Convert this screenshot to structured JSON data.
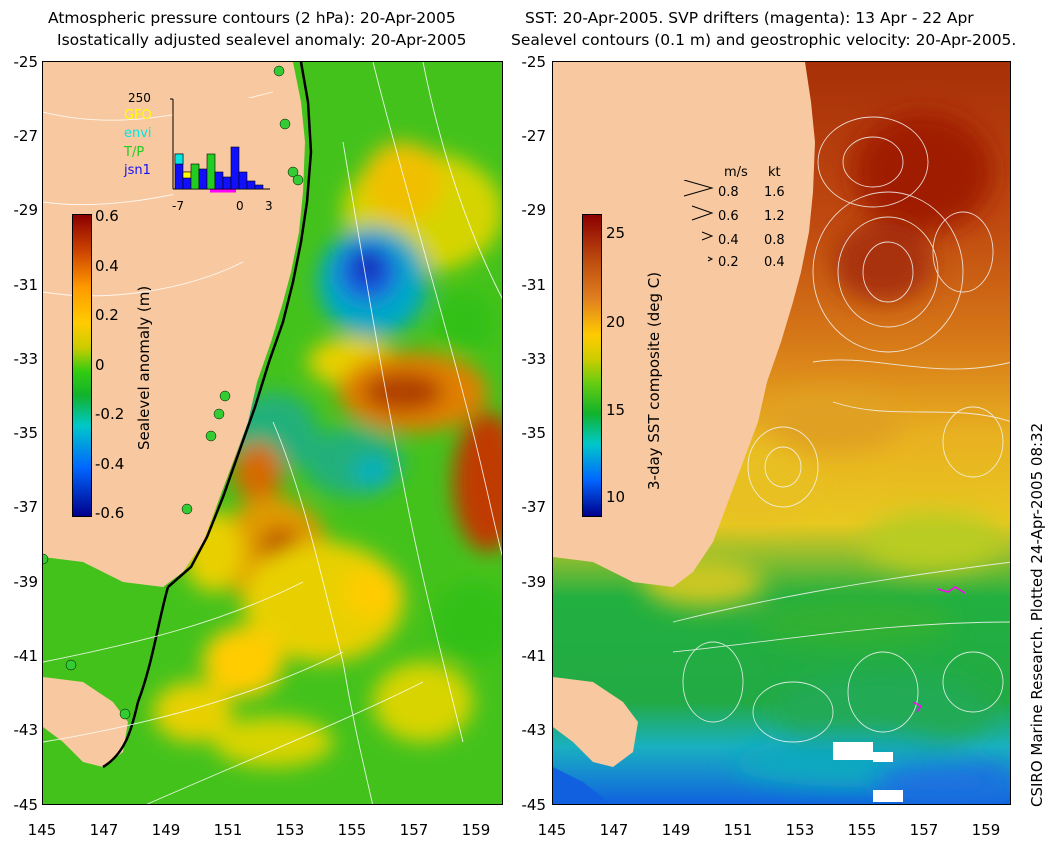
{
  "left": {
    "title1": "Atmospheric pressure contours (2 hPa): 20-Apr-2005",
    "title2": "Isostatically adjusted sealevel anomaly: 20-Apr-2005",
    "colorbar_label": "Sealevel anomaly (m)",
    "colorbar_ticks": [
      "0.6",
      "0.4",
      "0.2",
      "0",
      "-0.2",
      "-0.4",
      "-0.6"
    ],
    "inset": {
      "ymax_label": "250",
      "legend": [
        {
          "label": "GFO",
          "color": "#ffff00"
        },
        {
          "label": "envi",
          "color": "#00e6e6"
        },
        {
          "label": "T/P",
          "color": "#22cc22"
        },
        {
          "label": "jsn1",
          "color": "#1010ff"
        }
      ],
      "xticks": [
        "-7",
        "0",
        "3"
      ]
    }
  },
  "right": {
    "title1": "SST: 20-Apr-2005. SVP drifters (magenta): 13 Apr - 22 Apr",
    "title2": "Sealevel contours (0.1 m) and geostrophic velocity: 20-Apr-2005.",
    "colorbar_label": "3-day SST composite (deg C)",
    "colorbar_ticks": [
      "25",
      "20",
      "15",
      "10"
    ],
    "velocity_legend": {
      "header_ms": "m/s",
      "header_kt": "kt",
      "rows": [
        {
          "ms": "0.8",
          "kt": "1.6"
        },
        {
          "ms": "0.6",
          "kt": "1.2"
        },
        {
          "ms": "0.4",
          "kt": "0.8"
        },
        {
          "ms": "0.2",
          "kt": "0.4"
        }
      ]
    }
  },
  "axes": {
    "lat_labels": [
      "-25",
      "-27",
      "-29",
      "-31",
      "-33",
      "-35",
      "-37",
      "-39",
      "-41",
      "-43",
      "-45"
    ],
    "lon_labels": [
      "145",
      "147",
      "149",
      "151",
      "153",
      "155",
      "157",
      "159"
    ]
  },
  "credit": "CSIRO Marine Research. Plotted 24-Apr-2005 08:32",
  "colors": {
    "land": "#f8c9a0",
    "sla_ramp": [
      "#00008b",
      "#0066ff",
      "#00c8c8",
      "#11b22c",
      "#33cc11",
      "#cccc00",
      "#ffcc00",
      "#ff9900",
      "#cc4400",
      "#8b0000"
    ],
    "sst_ramp": [
      "#00008b",
      "#0066ff",
      "#00c8c8",
      "#11b22c",
      "#66cc11",
      "#cccc00",
      "#ffcc00",
      "#e08020",
      "#c05010",
      "#8b0000"
    ]
  }
}
